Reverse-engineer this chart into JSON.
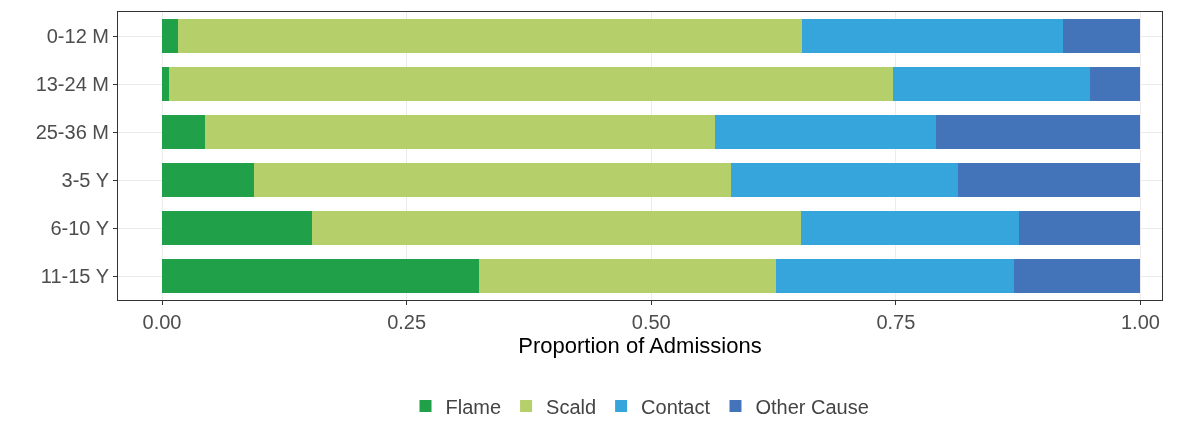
{
  "chart_data": {
    "type": "bar",
    "orientation": "horizontal",
    "stacked": true,
    "categories": [
      "0-12 M",
      "13-24 M",
      "25-36 M",
      "3-5 Y",
      "6-10 Y",
      "11-15 Y"
    ],
    "series": [
      {
        "name": "Flame",
        "color": "#21a04a",
        "values": [
          0.016,
          0.007,
          0.044,
          0.094,
          0.153,
          0.324
        ]
      },
      {
        "name": "Scald",
        "color": "#b5cf6b",
        "values": [
          0.638,
          0.74,
          0.521,
          0.488,
          0.5,
          0.303
        ]
      },
      {
        "name": "Contact",
        "color": "#35a5dc",
        "values": [
          0.267,
          0.201,
          0.226,
          0.231,
          0.223,
          0.244
        ]
      },
      {
        "name": "Other Cause",
        "color": "#4373b9",
        "values": [
          0.079,
          0.052,
          0.209,
          0.187,
          0.124,
          0.129
        ]
      }
    ],
    "xlabel": "Proportion of Admissions",
    "xlim": [
      -0.045,
      1.022
    ],
    "xticks": [
      {
        "value": 0,
        "label": "0.00"
      },
      0.25,
      {
        "value": 0.5,
        "label": "0.50"
      },
      0.75,
      {
        "value": 1,
        "label": "1.00"
      }
    ],
    "grid": true,
    "legend": "bottom"
  }
}
